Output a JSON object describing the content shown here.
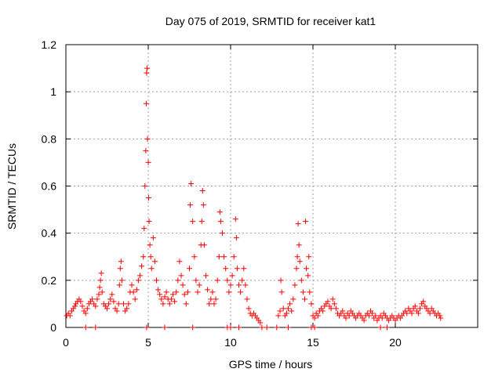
{
  "chart_data": {
    "type": "scatter",
    "title": "Day 075 of 2019, SRMTID for receiver kat1",
    "xlabel": "GPS time / hours",
    "ylabel": "SRMTID / TECUs",
    "xlim": [
      0,
      25
    ],
    "ylim": [
      0,
      1.2
    ],
    "x_ticks": [
      0,
      5,
      10,
      15,
      20
    ],
    "x_tick_labels": [
      "0",
      "5",
      "10",
      "15",
      "20"
    ],
    "y_ticks": [
      0,
      0.2,
      0.4,
      0.6,
      0.8,
      1.0,
      1.2
    ],
    "y_tick_labels": [
      "0",
      "0.2",
      "0.4",
      "0.6",
      "0.8",
      "1",
      "1.2"
    ],
    "grid": true,
    "marker": "plus",
    "color": "#ff0000",
    "series": [
      {
        "name": "SRMTID",
        "points": [
          [
            0.05,
            0.05
          ],
          [
            0.15,
            0.06
          ],
          [
            0.25,
            0.05
          ],
          [
            0.35,
            0.07
          ],
          [
            0.45,
            0.08
          ],
          [
            0.55,
            0.09
          ],
          [
            0.6,
            0.1
          ],
          [
            0.7,
            0.11
          ],
          [
            0.8,
            0.12
          ],
          [
            0.9,
            0.11
          ],
          [
            1.0,
            0.09
          ],
          [
            1.1,
            0.07
          ],
          [
            1.2,
            0.06
          ],
          [
            1.3,
            0.08
          ],
          [
            1.4,
            0.1
          ],
          [
            1.5,
            0.11
          ],
          [
            1.6,
            0.12
          ],
          [
            1.7,
            0.1
          ],
          [
            1.8,
            0.09
          ],
          [
            1.9,
            0.12
          ],
          [
            2.0,
            0.14
          ],
          [
            2.05,
            0.17
          ],
          [
            2.1,
            0.2
          ],
          [
            2.15,
            0.23
          ],
          [
            2.2,
            0.15
          ],
          [
            2.3,
            0.1
          ],
          [
            2.4,
            0.09
          ],
          [
            2.5,
            0.08
          ],
          [
            2.6,
            0.1
          ],
          [
            2.7,
            0.12
          ],
          [
            2.8,
            0.14
          ],
          [
            2.9,
            0.11
          ],
          [
            3.0,
            0.08
          ],
          [
            3.1,
            0.07
          ],
          [
            3.2,
            0.1
          ],
          [
            3.25,
            0.18
          ],
          [
            3.3,
            0.25
          ],
          [
            3.35,
            0.28
          ],
          [
            3.4,
            0.2
          ],
          [
            3.5,
            0.1
          ],
          [
            3.6,
            0.07
          ],
          [
            3.7,
            0.08
          ],
          [
            3.8,
            0.1
          ],
          [
            3.9,
            0.15
          ],
          [
            4.0,
            0.18
          ],
          [
            4.1,
            0.15
          ],
          [
            4.2,
            0.12
          ],
          [
            4.3,
            0.16
          ],
          [
            4.4,
            0.2
          ],
          [
            4.5,
            0.22
          ],
          [
            4.6,
            0.26
          ],
          [
            4.7,
            0.3
          ],
          [
            4.75,
            0.42
          ],
          [
            4.8,
            0.6
          ],
          [
            4.85,
            0.75
          ],
          [
            4.88,
            0.95
          ],
          [
            4.9,
            1.08
          ],
          [
            4.93,
            1.1
          ],
          [
            4.95,
            0.8
          ],
          [
            5.0,
            0.7
          ],
          [
            5.02,
            0.55
          ],
          [
            5.05,
            0.45
          ],
          [
            5.1,
            0.35
          ],
          [
            5.15,
            0.3
          ],
          [
            5.2,
            0.25
          ],
          [
            5.3,
            0.38
          ],
          [
            5.4,
            0.28
          ],
          [
            5.5,
            0.2
          ],
          [
            5.6,
            0.16
          ],
          [
            5.7,
            0.14
          ],
          [
            5.8,
            0.12
          ],
          [
            5.9,
            0.1
          ],
          [
            6.0,
            0.13
          ],
          [
            6.1,
            0.15
          ],
          [
            6.2,
            0.12
          ],
          [
            6.3,
            0.1
          ],
          [
            6.4,
            0.12
          ],
          [
            6.5,
            0.14
          ],
          [
            6.6,
            0.11
          ],
          [
            6.7,
            0.15
          ],
          [
            6.8,
            0.2
          ],
          [
            6.9,
            0.28
          ],
          [
            7.0,
            0.22
          ],
          [
            7.1,
            0.18
          ],
          [
            7.2,
            0.14
          ],
          [
            7.3,
            0.1
          ],
          [
            7.4,
            0.15
          ],
          [
            7.5,
            0.25
          ],
          [
            7.55,
            0.52
          ],
          [
            7.6,
            0.61
          ],
          [
            7.7,
            0.45
          ],
          [
            7.8,
            0.3
          ],
          [
            7.9,
            0.2
          ],
          [
            8.0,
            0.15
          ],
          [
            8.1,
            0.18
          ],
          [
            8.2,
            0.35
          ],
          [
            8.25,
            0.45
          ],
          [
            8.3,
            0.58
          ],
          [
            8.35,
            0.52
          ],
          [
            8.4,
            0.35
          ],
          [
            8.5,
            0.22
          ],
          [
            8.6,
            0.16
          ],
          [
            8.7,
            0.1
          ],
          [
            8.8,
            0.12
          ],
          [
            8.9,
            0.15
          ],
          [
            9.0,
            0.1
          ],
          [
            9.1,
            0.12
          ],
          [
            9.2,
            0.2
          ],
          [
            9.3,
            0.3
          ],
          [
            9.35,
            0.49
          ],
          [
            9.4,
            0.45
          ],
          [
            9.5,
            0.4
          ],
          [
            9.6,
            0.3
          ],
          [
            9.7,
            0.25
          ],
          [
            9.8,
            0.2
          ],
          [
            9.9,
            0.15
          ],
          [
            10.0,
            0.18
          ],
          [
            10.1,
            0.22
          ],
          [
            10.2,
            0.3
          ],
          [
            10.3,
            0.46
          ],
          [
            10.35,
            0.38
          ],
          [
            10.4,
            0.25
          ],
          [
            10.5,
            0.18
          ],
          [
            10.6,
            0.15
          ],
          [
            10.7,
            0.2
          ],
          [
            10.8,
            0.25
          ],
          [
            10.9,
            0.18
          ],
          [
            11.0,
            0.12
          ],
          [
            11.1,
            0.08
          ],
          [
            11.2,
            0.06
          ],
          [
            11.3,
            0.05
          ],
          [
            11.4,
            0.06
          ],
          [
            11.5,
            0.05
          ],
          [
            11.6,
            0.04
          ],
          [
            11.7,
            0.03
          ],
          [
            11.8,
            0.02
          ],
          [
            12.9,
            0.05
          ],
          [
            13.0,
            0.07
          ],
          [
            13.05,
            0.2
          ],
          [
            13.1,
            0.15
          ],
          [
            13.2,
            0.08
          ],
          [
            13.3,
            0.05
          ],
          [
            13.4,
            0.06
          ],
          [
            13.5,
            0.08
          ],
          [
            13.6,
            0.1
          ],
          [
            13.7,
            0.07
          ],
          [
            13.8,
            0.12
          ],
          [
            13.9,
            0.18
          ],
          [
            14.0,
            0.25
          ],
          [
            14.05,
            0.3
          ],
          [
            14.1,
            0.44
          ],
          [
            14.15,
            0.35
          ],
          [
            14.2,
            0.28
          ],
          [
            14.3,
            0.2
          ],
          [
            14.4,
            0.15
          ],
          [
            14.5,
            0.12
          ],
          [
            14.55,
            0.45
          ],
          [
            14.6,
            0.25
          ],
          [
            14.7,
            0.22
          ],
          [
            14.75,
            0.3
          ],
          [
            14.8,
            0.15
          ],
          [
            14.9,
            0.1
          ],
          [
            15.0,
            0.05
          ],
          [
            15.1,
            0.04
          ],
          [
            15.2,
            0.06
          ],
          [
            15.3,
            0.05
          ],
          [
            15.4,
            0.07
          ],
          [
            15.5,
            0.08
          ],
          [
            15.6,
            0.07
          ],
          [
            15.7,
            0.09
          ],
          [
            15.8,
            0.1
          ],
          [
            15.9,
            0.11
          ],
          [
            16.0,
            0.09
          ],
          [
            16.1,
            0.08
          ],
          [
            16.2,
            0.12
          ],
          [
            16.3,
            0.1
          ],
          [
            16.4,
            0.08
          ],
          [
            16.5,
            0.06
          ],
          [
            16.6,
            0.05
          ],
          [
            16.7,
            0.06
          ],
          [
            16.8,
            0.07
          ],
          [
            16.9,
            0.05
          ],
          [
            17.0,
            0.04
          ],
          [
            17.1,
            0.06
          ],
          [
            17.2,
            0.05
          ],
          [
            17.3,
            0.07
          ],
          [
            17.4,
            0.06
          ],
          [
            17.5,
            0.05
          ],
          [
            17.6,
            0.04
          ],
          [
            17.7,
            0.05
          ],
          [
            17.8,
            0.06
          ],
          [
            17.9,
            0.05
          ],
          [
            18.0,
            0.04
          ],
          [
            18.1,
            0.03
          ],
          [
            18.2,
            0.05
          ],
          [
            18.3,
            0.06
          ],
          [
            18.4,
            0.05
          ],
          [
            18.5,
            0.07
          ],
          [
            18.6,
            0.06
          ],
          [
            18.7,
            0.04
          ],
          [
            18.8,
            0.05
          ],
          [
            18.9,
            0.03
          ],
          [
            19.0,
            0.04
          ],
          [
            19.1,
            0.05
          ],
          [
            19.2,
            0.04
          ],
          [
            19.3,
            0.06
          ],
          [
            19.4,
            0.05
          ],
          [
            19.5,
            0.04
          ],
          [
            19.6,
            0.03
          ],
          [
            19.7,
            0.04
          ],
          [
            19.8,
            0.05
          ],
          [
            19.9,
            0.04
          ],
          [
            20.0,
            0.03
          ],
          [
            20.1,
            0.04
          ],
          [
            20.2,
            0.05
          ],
          [
            20.3,
            0.04
          ],
          [
            20.4,
            0.05
          ],
          [
            20.5,
            0.06
          ],
          [
            20.6,
            0.07
          ],
          [
            20.7,
            0.06
          ],
          [
            20.8,
            0.08
          ],
          [
            20.9,
            0.07
          ],
          [
            21.0,
            0.06
          ],
          [
            21.1,
            0.08
          ],
          [
            21.2,
            0.09
          ],
          [
            21.3,
            0.07
          ],
          [
            21.4,
            0.06
          ],
          [
            21.5,
            0.08
          ],
          [
            21.6,
            0.1
          ],
          [
            21.7,
            0.11
          ],
          [
            21.8,
            0.09
          ],
          [
            21.9,
            0.08
          ],
          [
            22.0,
            0.07
          ],
          [
            22.1,
            0.06
          ],
          [
            22.2,
            0.08
          ],
          [
            22.3,
            0.07
          ],
          [
            22.4,
            0.06
          ],
          [
            22.5,
            0.05
          ],
          [
            22.6,
            0.06
          ],
          [
            22.7,
            0.05
          ],
          [
            22.75,
            0.04
          ],
          [
            1.2,
            0.0
          ],
          [
            1.8,
            0.0
          ],
          [
            4.9,
            0.0
          ],
          [
            6.0,
            0.0
          ],
          [
            7.7,
            0.0
          ],
          [
            9.8,
            0.0
          ],
          [
            10.0,
            0.0
          ],
          [
            10.5,
            0.0
          ],
          [
            11.9,
            0.0
          ],
          [
            12.2,
            0.0
          ],
          [
            12.8,
            0.0
          ],
          [
            13.5,
            0.0
          ],
          [
            14.9,
            0.0
          ],
          [
            15.1,
            0.0
          ],
          [
            19.1,
            0.0
          ],
          [
            19.5,
            0.0
          ]
        ]
      }
    ]
  }
}
